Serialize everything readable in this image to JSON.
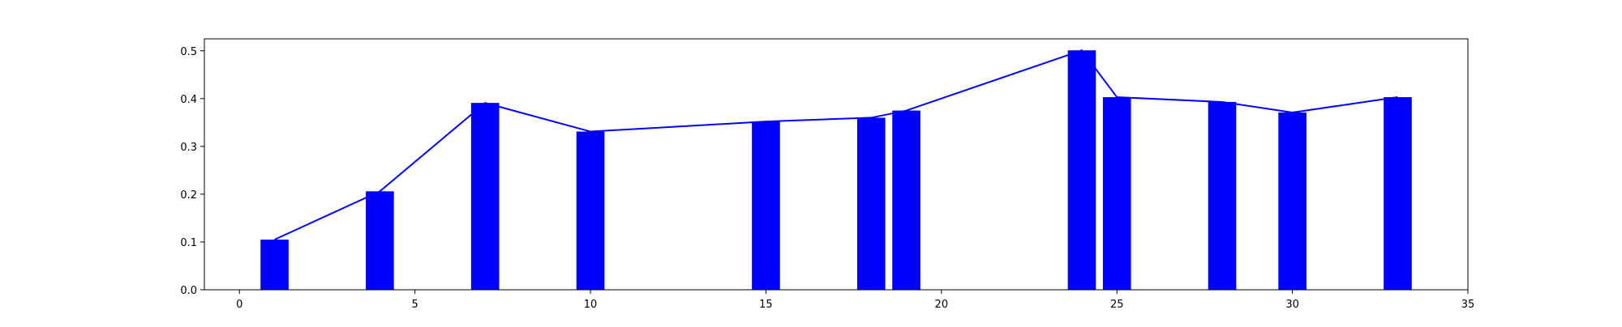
{
  "chart_data": {
    "type": "bar",
    "title": "",
    "xlabel": "",
    "ylabel": "",
    "xlim": [
      -1,
      35
    ],
    "ylim": [
      0,
      0.525
    ],
    "x_ticks": [
      0,
      5,
      10,
      15,
      20,
      25,
      30,
      35
    ],
    "x_tick_labels": [
      "0",
      "5",
      "10",
      "15",
      "20",
      "25",
      "30",
      "35"
    ],
    "y_ticks": [
      0.0,
      0.1,
      0.2,
      0.3,
      0.4,
      0.5
    ],
    "y_tick_labels": [
      "0.0",
      "0.1",
      "0.2",
      "0.3",
      "0.4",
      "0.5"
    ],
    "grid": false,
    "legend": "none",
    "bar_width": 0.8,
    "bar_color": "#0000ff",
    "line_color": "#0000ff",
    "x": [
      1,
      4,
      7,
      10,
      15,
      18,
      19,
      24,
      25,
      28,
      30,
      33
    ],
    "values": [
      0.105,
      0.206,
      0.391,
      0.331,
      0.352,
      0.36,
      0.375,
      0.501,
      0.403,
      0.393,
      0.371,
      0.403
    ],
    "series": [
      {
        "type": "bar",
        "x": [
          1,
          4,
          7,
          10,
          15,
          18,
          19,
          24,
          25,
          28,
          30,
          33
        ],
        "values": [
          0.105,
          0.206,
          0.391,
          0.331,
          0.352,
          0.36,
          0.375,
          0.501,
          0.403,
          0.393,
          0.371,
          0.403
        ]
      },
      {
        "type": "line",
        "x": [
          1,
          4,
          7,
          10,
          15,
          18,
          19,
          24,
          25,
          28,
          30,
          33
        ],
        "values": [
          0.105,
          0.206,
          0.391,
          0.331,
          0.352,
          0.36,
          0.375,
          0.501,
          0.403,
          0.393,
          0.371,
          0.403
        ]
      }
    ]
  }
}
